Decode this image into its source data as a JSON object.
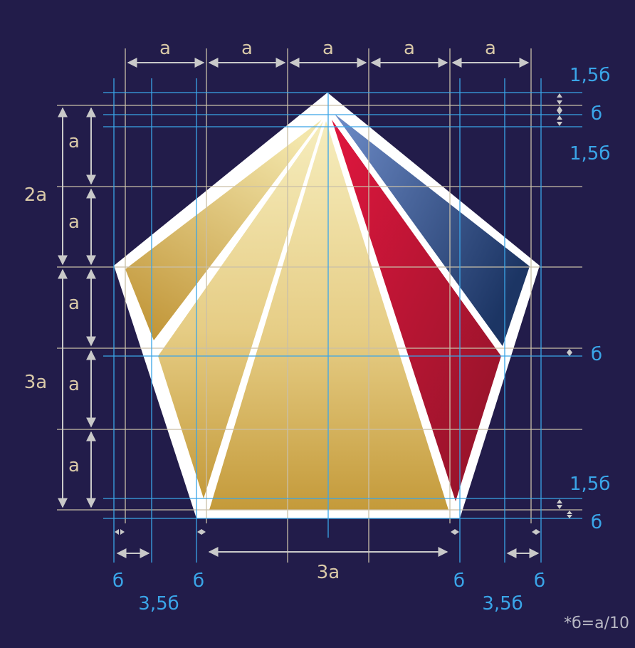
{
  "colors": {
    "background": "#221c4a",
    "frame": "#ffffff",
    "gridline_beige": "#c9bfa8",
    "gridline_blue": "#3aa5e8",
    "gold_light": "#f3e8b0",
    "gold_dark": "#c49a3a",
    "red_light": "#e0163e",
    "red_dark": "#8e1428",
    "blue_light": "#6a86c4",
    "blue_dark": "#1f3a6a"
  },
  "labels": {
    "top": [
      "a",
      "a",
      "a",
      "a",
      "a"
    ],
    "left_outer": [
      "2a",
      "3a"
    ],
    "left_inner": [
      "a",
      "a",
      "a",
      "a",
      "a"
    ],
    "right": [
      "1,5б",
      "б",
      "1,5б",
      "б",
      "1,5б",
      "б"
    ],
    "bottom_b": [
      "б",
      "б",
      "б",
      "б"
    ],
    "bottom_35": [
      "3,5б",
      "3,5б"
    ],
    "bottom_3a": "3a",
    "note": "*б=a/10"
  }
}
